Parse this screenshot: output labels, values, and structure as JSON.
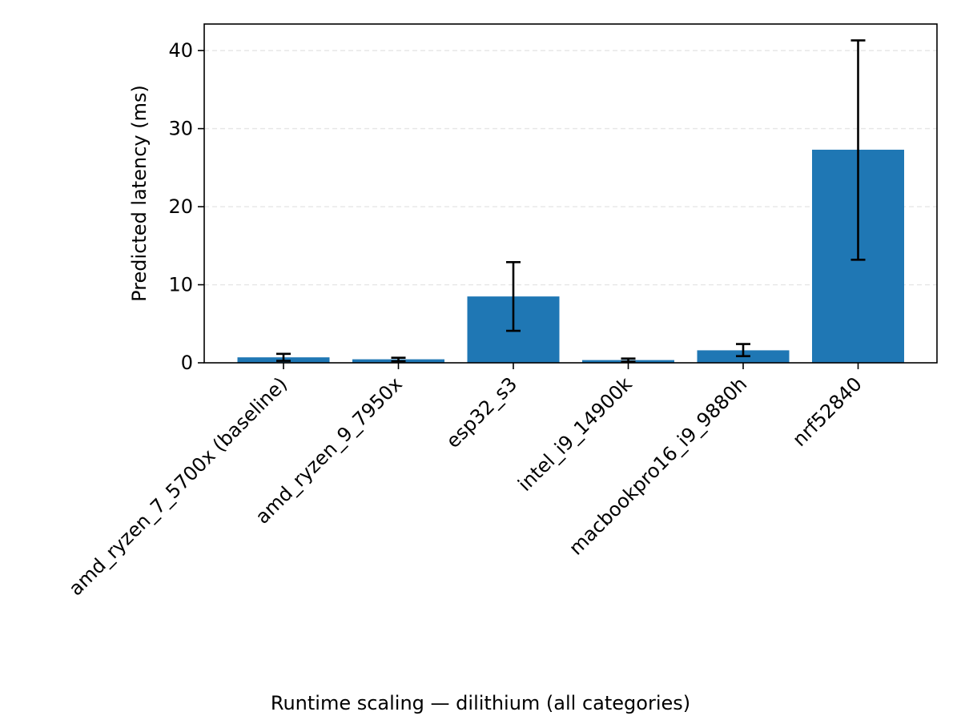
{
  "chart_data": {
    "type": "bar",
    "title": "",
    "xlabel": "Runtime scaling — dilithium (all categories)",
    "ylabel": "Predicted latency (ms)",
    "categories": [
      "amd_ryzen_7_5700x (baseline)",
      "amd_ryzen_9_7950x",
      "esp32_s3",
      "intel_i9_14900k",
      "macbookpro16_i9_9880h",
      "nrf52840"
    ],
    "values": [
      0.7,
      0.45,
      8.5,
      0.35,
      1.6,
      27.3
    ],
    "error_low": [
      0.25,
      0.2,
      4.1,
      0.15,
      0.85,
      13.2
    ],
    "error_high": [
      1.15,
      0.65,
      12.9,
      0.55,
      2.4,
      41.3
    ],
    "ylim": [
      0,
      43.4
    ],
    "yticks": [
      0,
      10,
      20,
      30,
      40
    ],
    "grid": "y-dashed",
    "legend": "none",
    "colors": {
      "bar": "#1f77b4",
      "errorbar": "#000000",
      "grid": "#e6e6e6",
      "axes": "#000000"
    }
  }
}
